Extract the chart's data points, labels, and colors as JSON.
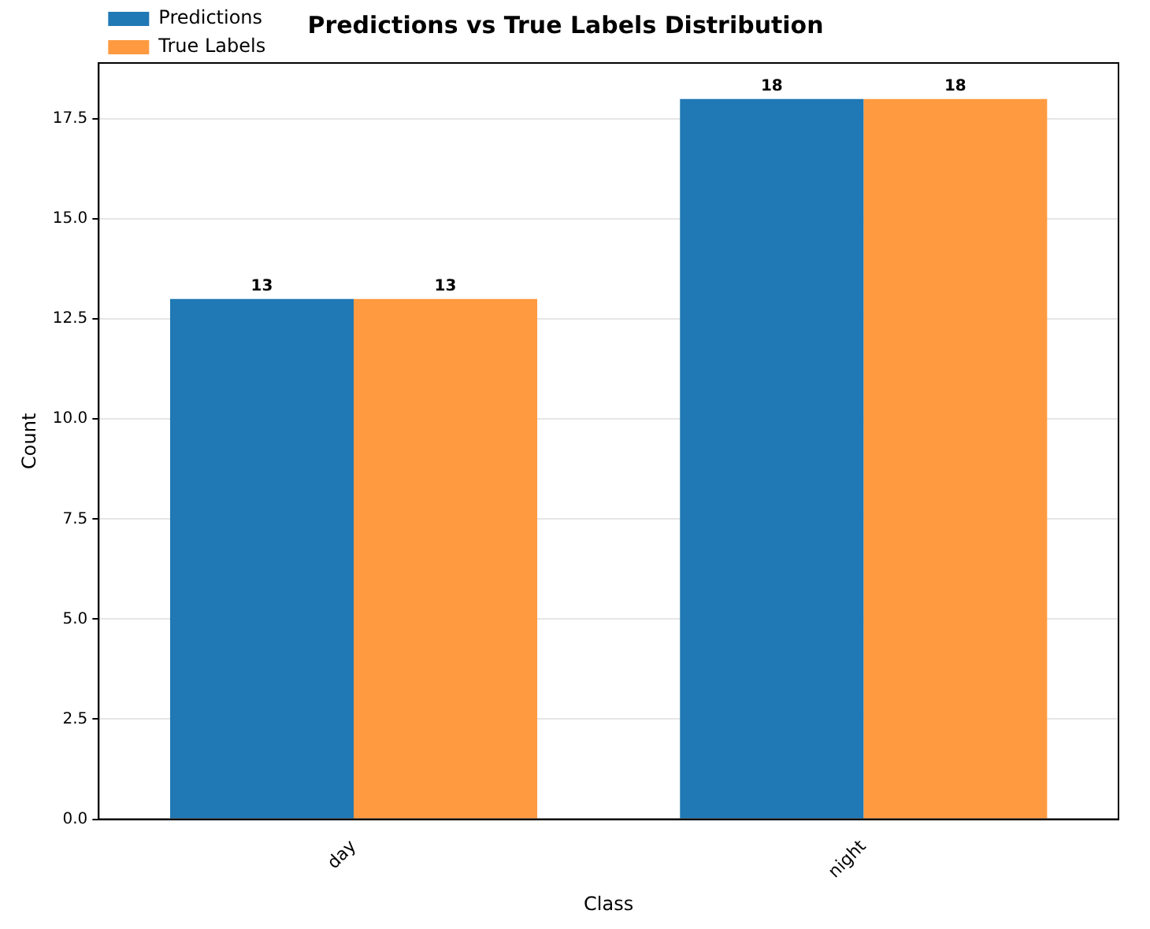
{
  "chart_data": {
    "type": "bar",
    "title": "Predictions vs True Labels Distribution",
    "xlabel": "Class",
    "ylabel": "Count",
    "categories": [
      "day",
      "night"
    ],
    "series": [
      {
        "name": "Predictions",
        "color": "#2078b4",
        "values": [
          13,
          18
        ]
      },
      {
        "name": "True Labels",
        "color": "#ff9a40",
        "values": [
          13,
          18
        ]
      }
    ],
    "ylim": [
      0,
      18.9
    ],
    "yticks": [
      {
        "value": 0,
        "label": "0.0"
      },
      {
        "value": 2.5,
        "label": "2.5"
      },
      {
        "value": 5,
        "label": "5.0"
      },
      {
        "value": 7.5,
        "label": "7.5"
      },
      {
        "value": 10,
        "label": "10.0"
      },
      {
        "value": 12.5,
        "label": "12.5"
      },
      {
        "value": 15,
        "label": "15.0"
      },
      {
        "value": 17.5,
        "label": "17.5"
      }
    ],
    "grid": "y",
    "legend": "top left",
    "data_labels": true
  }
}
